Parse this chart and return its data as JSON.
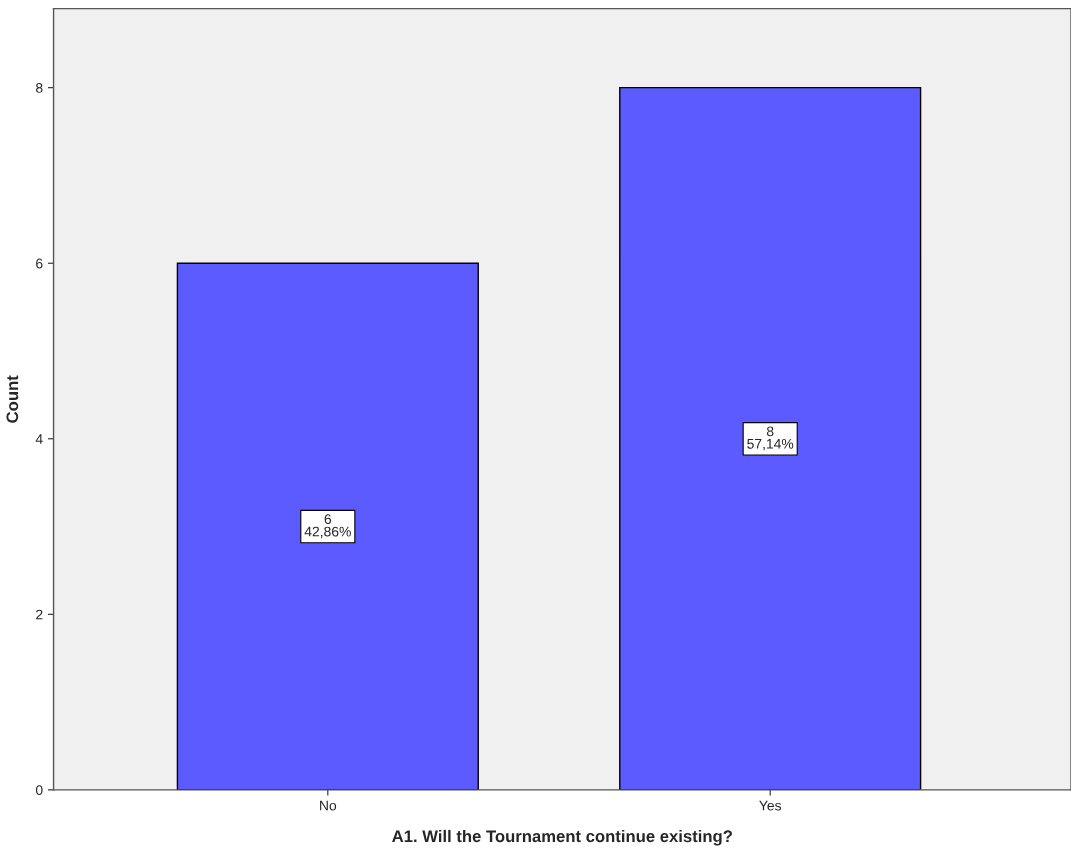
{
  "chart_data": {
    "type": "bar",
    "xlabel": "A1. Will the Tournament continue existing?",
    "ylabel": "Count",
    "categories": [
      "No",
      "Yes"
    ],
    "values": [
      6,
      8
    ],
    "value_labels": [
      "6\n42,86%",
      "8\n57,14%"
    ],
    "color": "#5b5bff",
    "ylim": [
      0,
      8.9
    ],
    "yticks": [
      0,
      2,
      4,
      6,
      8
    ],
    "grid": false
  }
}
